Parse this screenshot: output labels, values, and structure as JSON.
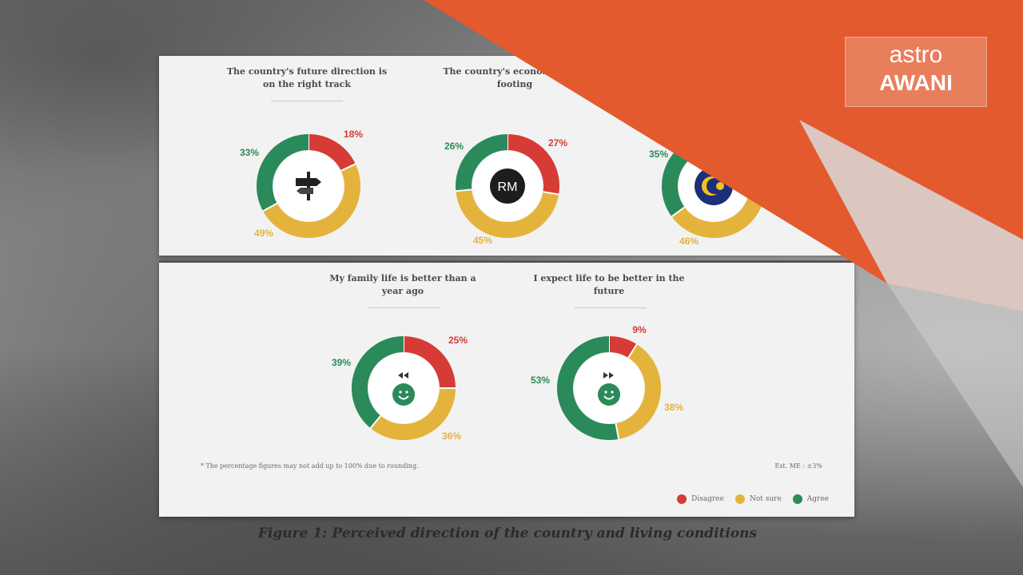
{
  "caption": "Figure 1: Perceived direction of the country and living conditions",
  "footnote": "* The percentage figures may not add up to 100% due to rounding.",
  "moe": "Est. ME : ±3%",
  "legend": [
    {
      "label": "Disagree",
      "color": "#d63b35"
    },
    {
      "label": "Not sure",
      "color": "#e4b33b"
    },
    {
      "label": "Agree",
      "color": "#2a8a5a"
    }
  ],
  "brand": {
    "line1": "astro",
    "line2": "AWANI",
    "color": "#e35a2e"
  },
  "chart_data": [
    {
      "type": "pie",
      "title": "The country's future direction is on the right track",
      "center_icon": "signpost-icon",
      "categories": [
        "Disagree",
        "Not sure",
        "Agree"
      ],
      "values": [
        18,
        49,
        33
      ],
      "labels": [
        "18%",
        "49%",
        "33%"
      ]
    },
    {
      "type": "pie",
      "title": "The country's econo... strong footing",
      "center_icon": "ringgit-coin-icon",
      "center_text": "RM",
      "categories": [
        "Disagree",
        "Not sure",
        "Agree"
      ],
      "values": [
        27,
        45,
        26
      ],
      "labels": [
        "27%",
        "45%",
        "26%"
      ]
    },
    {
      "type": "pie",
      "title": "",
      "center_icon": "malaysia-emblem-icon",
      "categories": [
        "Disagree",
        "Not sure",
        "Agree"
      ],
      "values": [
        19,
        46,
        35
      ],
      "labels": [
        "",
        "46%",
        "35%"
      ]
    },
    {
      "type": "pie",
      "title": "My family life is better than a year ago",
      "center_icon": "smiley-rewind-icon",
      "categories": [
        "Disagree",
        "Not sure",
        "Agree"
      ],
      "values": [
        25,
        36,
        39
      ],
      "labels": [
        "25%",
        "36%",
        "39%"
      ]
    },
    {
      "type": "pie",
      "title": "I expect life to be better in the future",
      "center_icon": "smiley-forward-icon",
      "categories": [
        "Disagree",
        "Not sure",
        "Agree"
      ],
      "values": [
        9,
        38,
        53
      ],
      "labels": [
        "9%",
        "38%",
        "53%"
      ]
    }
  ]
}
